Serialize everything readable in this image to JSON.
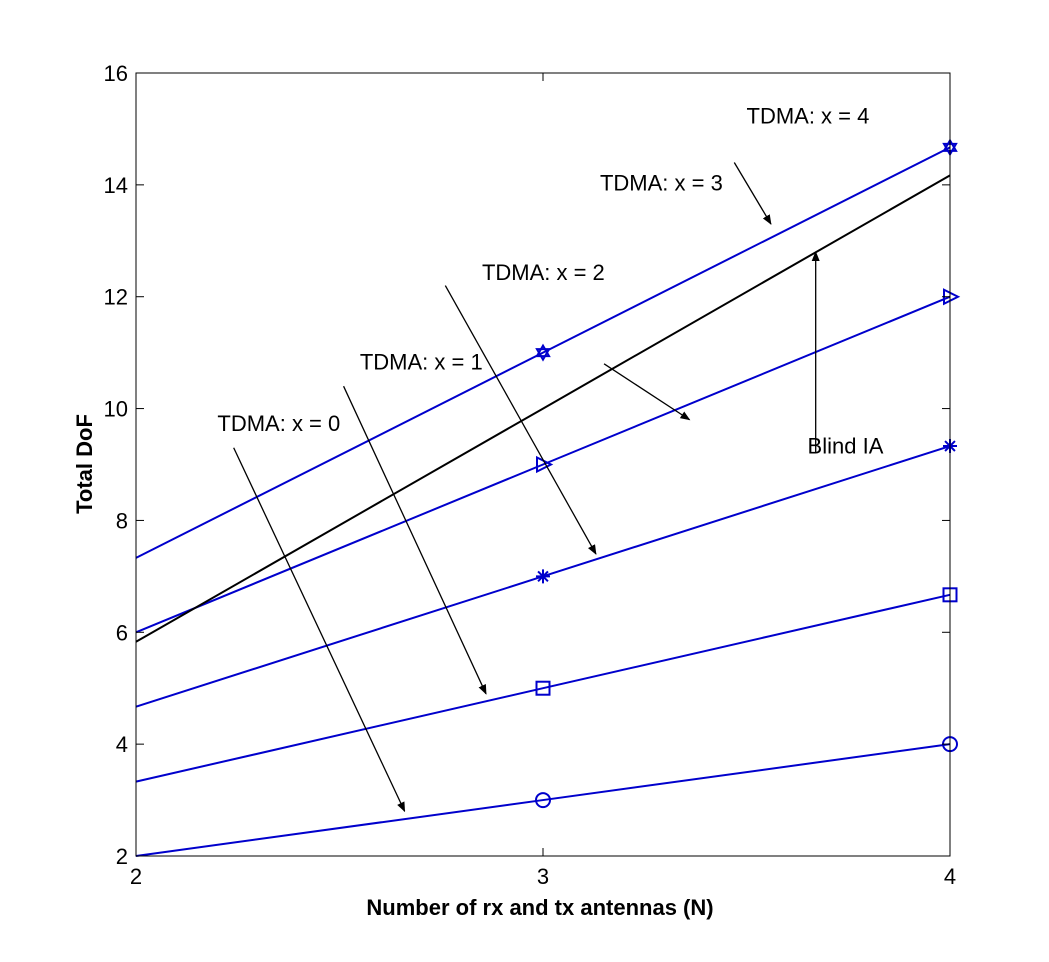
{
  "chart_data": {
    "type": "line",
    "title": "",
    "xlabel": "Number of rx and tx antennas (N)",
    "ylabel": "Total DoF",
    "xlim": [
      2,
      4
    ],
    "ylim": [
      2,
      16
    ],
    "xticks": [
      "2",
      "3",
      "4"
    ],
    "yticks": [
      "2",
      "4",
      "6",
      "8",
      "10",
      "12",
      "14",
      "16"
    ],
    "grid": false,
    "series": [
      {
        "name": "TDMA: x = 0",
        "color": "#0000cc",
        "marker": "circle",
        "x": [
          2,
          3,
          4
        ],
        "y": [
          2.0,
          3.0,
          4.0
        ]
      },
      {
        "name": "TDMA: x = 1",
        "color": "#0000cc",
        "marker": "square",
        "x": [
          2,
          3,
          4
        ],
        "y": [
          3.33,
          5.0,
          6.67
        ]
      },
      {
        "name": "TDMA: x = 2",
        "color": "#0000cc",
        "marker": "asterisk",
        "x": [
          2,
          3,
          4
        ],
        "y": [
          4.67,
          7.0,
          9.33
        ]
      },
      {
        "name": "TDMA: x = 3",
        "color": "#0000cc",
        "marker": "triangle-right",
        "x": [
          2,
          3,
          4
        ],
        "y": [
          6.0,
          9.0,
          12.0
        ]
      },
      {
        "name": "TDMA: x = 4",
        "color": "#0000cc",
        "marker": "hexagram",
        "x": [
          2,
          3,
          4
        ],
        "y": [
          7.33,
          11.0,
          14.67
        ]
      },
      {
        "name": "Blind IA",
        "color": "#000000",
        "marker": "none",
        "x": [
          2,
          3,
          4
        ],
        "y": [
          5.83,
          10.0,
          14.17
        ]
      }
    ],
    "annotations": [
      {
        "text": "TDMA: x = 0",
        "x": 2.2,
        "y": 9.6,
        "arrow_from": [
          2.24,
          9.3
        ],
        "arrow_to": [
          2.66,
          2.8
        ]
      },
      {
        "text": "TDMA: x = 1",
        "x": 2.55,
        "y": 10.7,
        "arrow_from": [
          2.51,
          10.4
        ],
        "arrow_to": [
          2.86,
          4.9
        ]
      },
      {
        "text": "TDMA: x = 2",
        "x": 2.85,
        "y": 12.3,
        "arrow_from": [
          2.76,
          12.2
        ],
        "arrow_to": [
          3.13,
          7.4
        ]
      },
      {
        "text": "TDMA: x = 3",
        "x": 3.14,
        "y": 13.9,
        "arrow_from": [
          3.15,
          10.8
        ],
        "arrow_to": [
          3.36,
          9.8
        ]
      },
      {
        "text": "TDMA: x = 4",
        "x": 3.5,
        "y": 15.1,
        "arrow_from": [
          3.47,
          14.4
        ],
        "arrow_to": [
          3.56,
          13.3
        ]
      },
      {
        "text": "Blind IA",
        "x": 3.65,
        "y": 9.2,
        "arrow_from": [
          3.67,
          9.2
        ],
        "arrow_to": [
          3.67,
          12.8
        ]
      }
    ]
  }
}
